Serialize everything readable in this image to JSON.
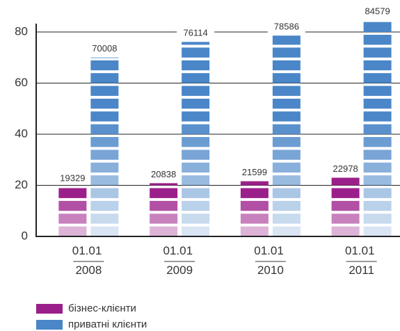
{
  "chart_data": {
    "type": "bar",
    "categories": [
      "01.01 2008",
      "01.01 2009",
      "01.01 2010",
      "01.01 2011"
    ],
    "series": [
      {
        "name": "бізнес-клієнти",
        "color": "#9b1f8a",
        "values": [
          19.329,
          20.838,
          21.599,
          22.978
        ],
        "value_labels": [
          "19329",
          "20838",
          "21599",
          "22978"
        ]
      },
      {
        "name": "приватні клієнти",
        "color": "#4a86c8",
        "values": [
          70.008,
          76.114,
          78.586,
          84.579
        ],
        "value_labels": [
          "70008",
          "76114",
          "78586",
          "84579"
        ]
      }
    ],
    "ylim": [
      0,
      80
    ],
    "yticks": [
      0,
      20,
      40,
      60,
      80
    ],
    "grid": true,
    "legend": "bottom-left"
  }
}
